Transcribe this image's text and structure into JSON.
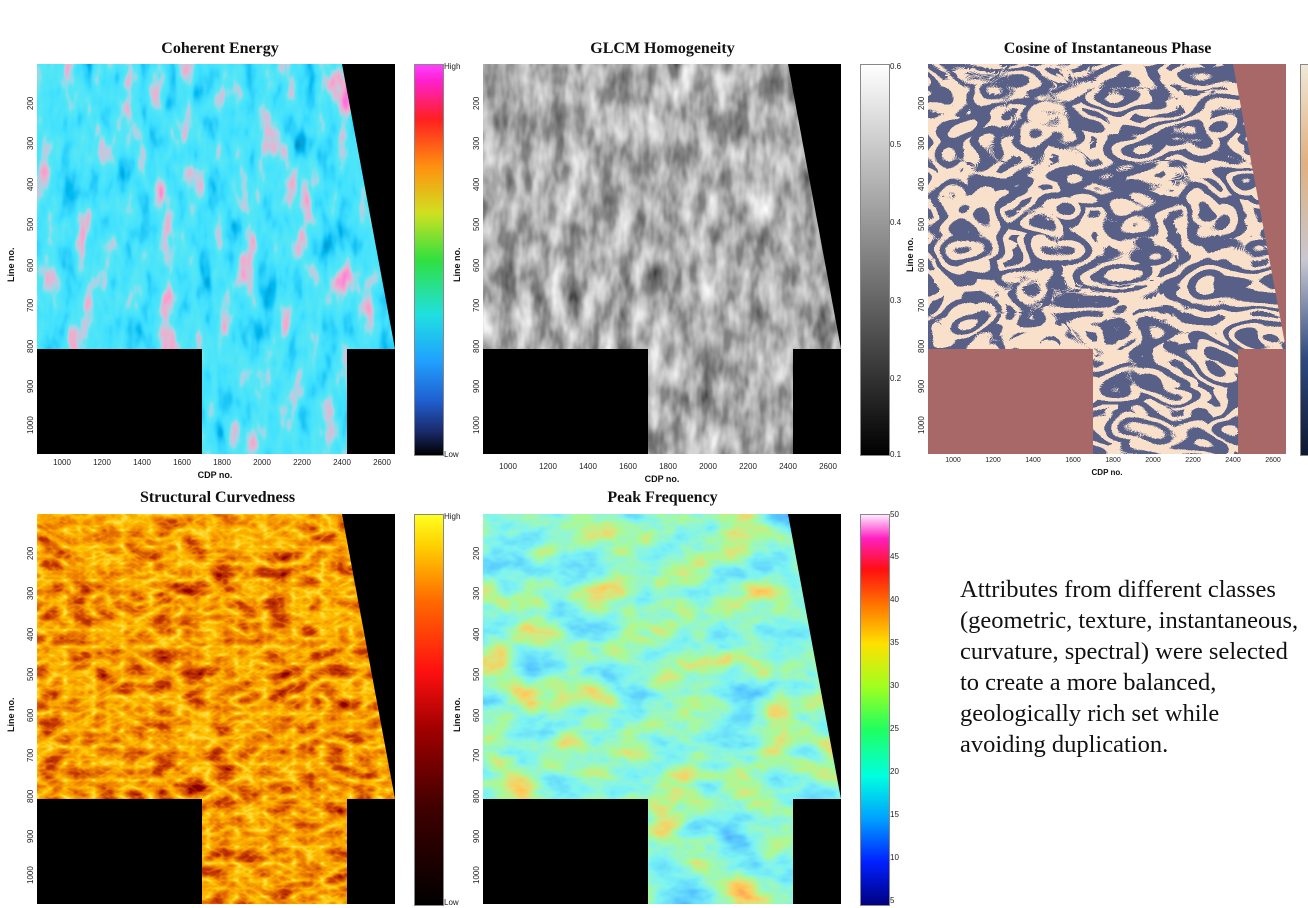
{
  "panels": {
    "coherent": {
      "title": "Coherent Energy",
      "y_axis_label": "Line no.",
      "x_axis_label": "CDP no.",
      "y_ticks": [
        "200",
        "300",
        "400",
        "500",
        "600",
        "700",
        "800",
        "900",
        "1000"
      ],
      "x_ticks": [
        "1000",
        "1200",
        "1400",
        "1600",
        "1800",
        "2000",
        "2200",
        "2400",
        "2600"
      ],
      "colorbar_labels": [
        "High",
        "Low"
      ]
    },
    "glcm": {
      "title": "GLCM Homogeneity",
      "y_axis_label": "Line no.",
      "x_axis_label": "CDP no.",
      "y_ticks": [
        "200",
        "300",
        "400",
        "500",
        "600",
        "700",
        "800",
        "900",
        "1000"
      ],
      "x_ticks": [
        "1000",
        "1200",
        "1400",
        "1600",
        "1800",
        "2000",
        "2200",
        "2400",
        "2600"
      ],
      "colorbar_labels": [
        "0.6",
        "0.5",
        "0.4",
        "0.3",
        "0.2",
        "0.1"
      ]
    },
    "cosine": {
      "title": "Cosine of Instantaneous Phase",
      "y_axis_label": "Line no.",
      "x_axis_label": "CDP no.",
      "y_ticks": [
        "200",
        "300",
        "400",
        "500",
        "600",
        "700",
        "800",
        "900",
        "1000"
      ],
      "x_ticks": [
        "1000",
        "1200",
        "1400",
        "1600",
        "1800",
        "2000",
        "2200",
        "2400",
        "2600"
      ]
    },
    "curvedness": {
      "title": "Structural Curvedness",
      "y_axis_label": "Line no.",
      "y_ticks": [
        "200",
        "300",
        "400",
        "500",
        "600",
        "700",
        "800",
        "900",
        "1000"
      ],
      "colorbar_labels": [
        "High",
        "Low"
      ]
    },
    "peak": {
      "title": "Peak Frequency",
      "y_axis_label": "Line no.",
      "y_ticks": [
        "200",
        "300",
        "400",
        "500",
        "600",
        "700",
        "800",
        "900",
        "1000"
      ],
      "colorbar_labels": [
        "50",
        "45",
        "40",
        "35",
        "30",
        "25",
        "20",
        "15",
        "10",
        "5"
      ]
    }
  },
  "colors": {
    "outside_mask": "#000000",
    "cosine_outside_mask": "#a86868"
  },
  "description": "Attributes from different classes (geometric, texture, instantaneous, curvature, spectral) were selected to create a more balanced, geologically rich set while avoiding duplication."
}
